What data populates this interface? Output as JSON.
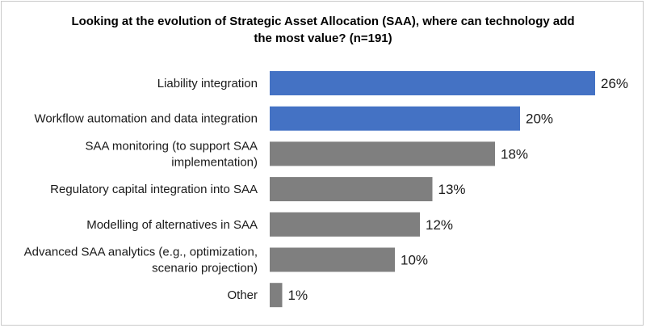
{
  "title_line1": "Looking at the evolution of Strategic Asset Allocation (SAA), where can technology add",
  "title_line2": "the most value? (n=191)",
  "colors": {
    "highlight": "#4472c4",
    "default": "#7f7f7f"
  },
  "chart_data": {
    "type": "bar",
    "orientation": "horizontal",
    "title": "Looking at the evolution of Strategic Asset Allocation (SAA), where can technology add the most value? (n=191)",
    "categories": [
      [
        "Liability integration"
      ],
      [
        "Workflow automation and data integration"
      ],
      [
        "SAA monitoring (to support SAA",
        "implementation)"
      ],
      [
        "Regulatory capital integration into SAA"
      ],
      [
        "Modelling of alternatives in SAA"
      ],
      [
        "Advanced SAA analytics (e.g., optimization,",
        "scenario projection)"
      ],
      [
        "Other"
      ]
    ],
    "values": [
      26,
      20,
      18,
      13,
      12,
      10,
      1
    ],
    "value_labels": [
      "26%",
      "20%",
      "18%",
      "13%",
      "12%",
      "10%",
      "1%"
    ],
    "highlighted": [
      true,
      true,
      false,
      false,
      false,
      false,
      false
    ],
    "xlim": [
      0,
      26
    ],
    "unit": "%",
    "grid": false,
    "legend": "none"
  }
}
